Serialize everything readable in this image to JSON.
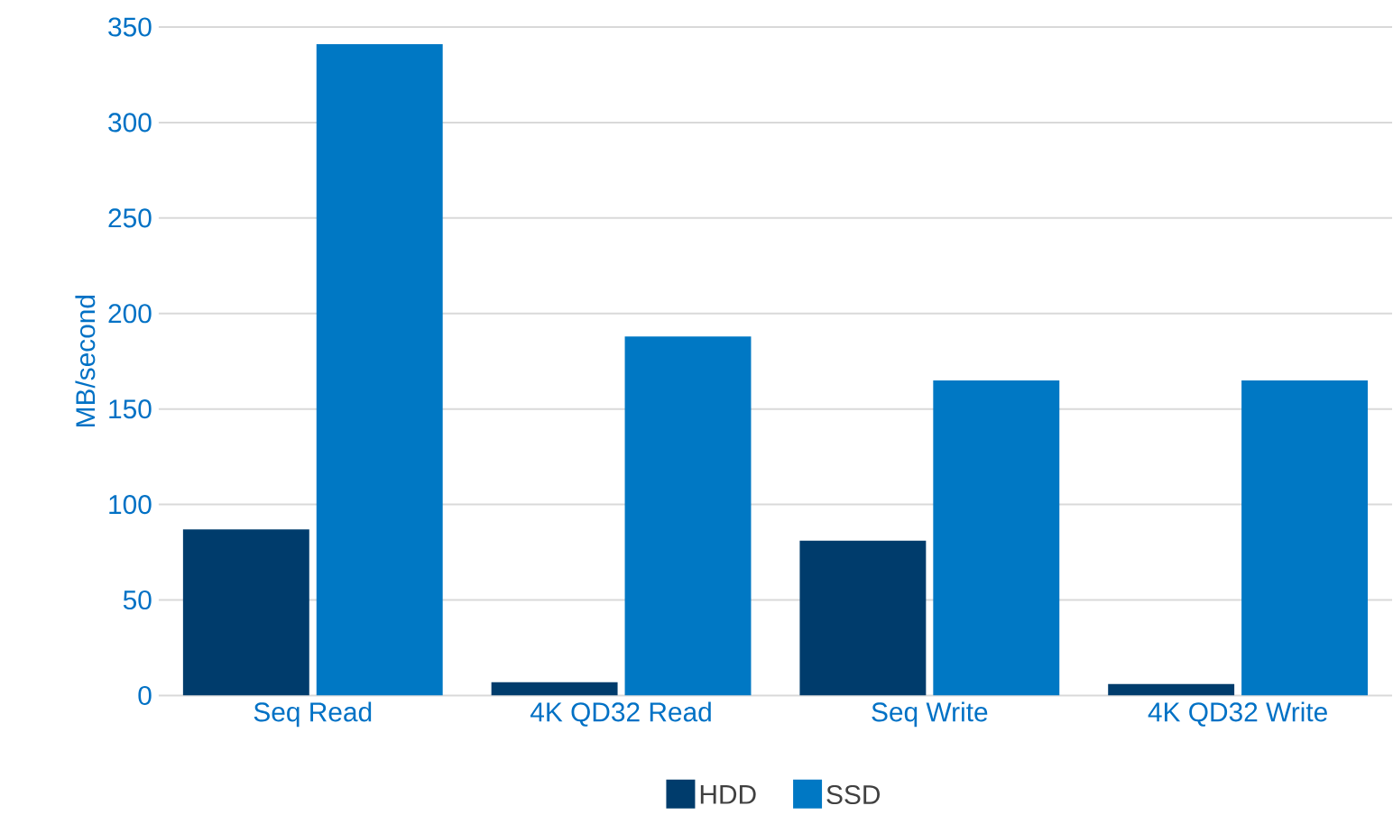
{
  "chart_data": {
    "type": "bar",
    "ylabel": "MB/second",
    "categories": [
      "Seq Read",
      "4K QD32 Read",
      "Seq Write",
      "4K QD32 Write"
    ],
    "series": [
      {
        "name": "HDD",
        "color": "#003c6c",
        "values": [
          87,
          7,
          81,
          6
        ]
      },
      {
        "name": "SSD",
        "color": "#0078c4",
        "values": [
          341,
          188,
          165,
          165
        ]
      }
    ],
    "ylim": [
      0,
      350
    ],
    "yticks": [
      0,
      50,
      100,
      150,
      200,
      250,
      300,
      350
    ],
    "grid": "y",
    "legend": "bottom"
  }
}
